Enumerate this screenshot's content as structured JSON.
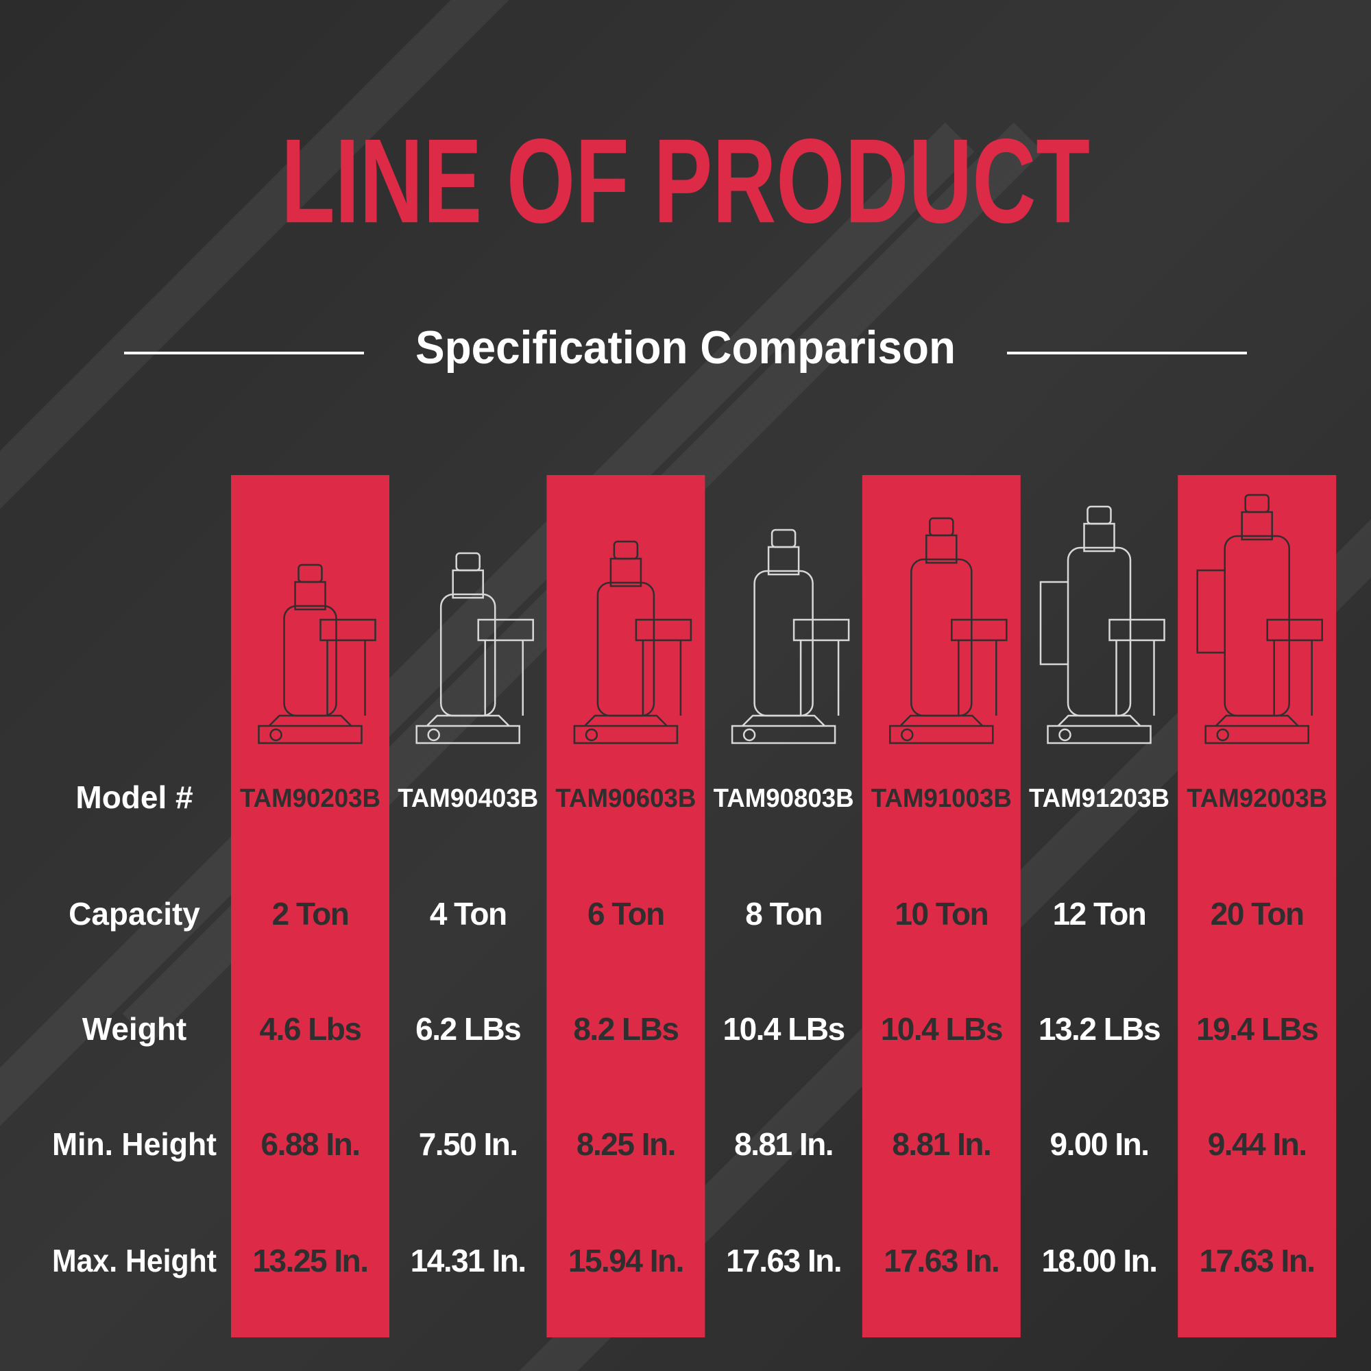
{
  "title": "LINE OF PRODUCT",
  "subtitle": "Specification Comparison",
  "row_labels": [
    "Model #",
    "Capacity",
    "Weight",
    "Min. Height",
    "Max. Height"
  ],
  "columns": [
    {
      "model": "TAM90203B",
      "capacity": "2 Ton",
      "weight": "4.6 Lbs",
      "min_height": "6.88 In.",
      "max_height": "13.25 In."
    },
    {
      "model": "TAM90403B",
      "capacity": "4 Ton",
      "weight": "6.2 LBs",
      "min_height": "7.50 In.",
      "max_height": "14.31 In."
    },
    {
      "model": "TAM90603B",
      "capacity": "6 Ton",
      "weight": "8.2 LBs",
      "min_height": "8.25 In.",
      "max_height": "15.94 In."
    },
    {
      "model": "TAM90803B",
      "capacity": "8 Ton",
      "weight": "10.4 LBs",
      "min_height": "8.81 In.",
      "max_height": "17.63 In."
    },
    {
      "model": "TAM91003B",
      "capacity": "10 Ton",
      "weight": "10.4 LBs",
      "min_height": "8.81 In.",
      "max_height": "17.63 In."
    },
    {
      "model": "TAM91203B",
      "capacity": "12 Ton",
      "weight": "13.2 LBs",
      "min_height": "9.00 In.",
      "max_height": "18.00 In."
    },
    {
      "model": "TAM92003B",
      "capacity": "20 Ton",
      "weight": "19.4 LBs",
      "min_height": "9.44 In.",
      "max_height": "17.63 In."
    }
  ]
}
